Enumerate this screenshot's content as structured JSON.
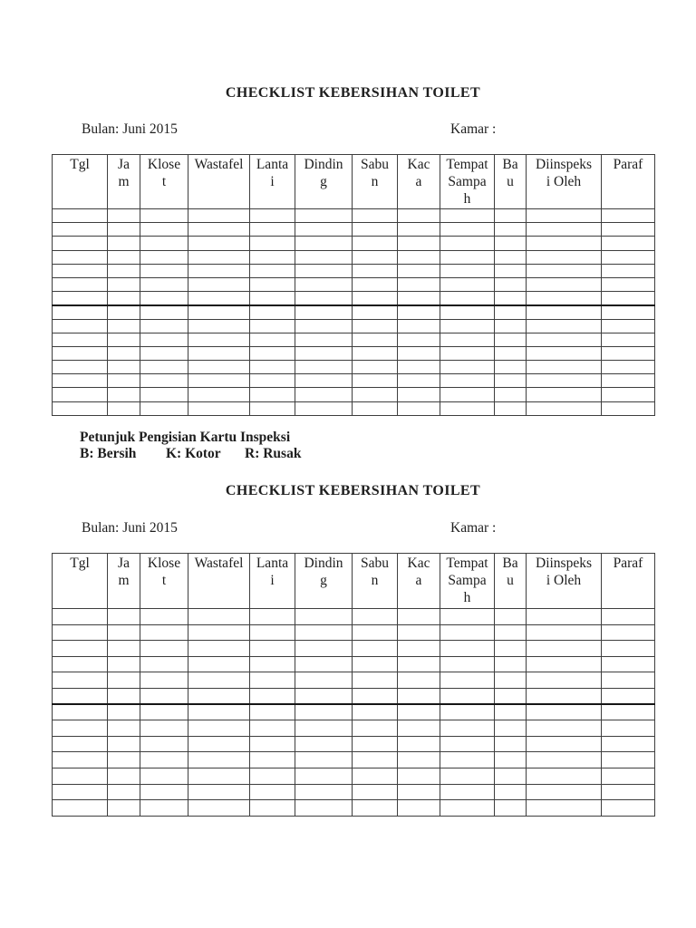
{
  "document": {
    "sections": [
      {
        "title": "CHECKLIST KEBERSIHAN TOILET",
        "month_label": "Bulan: Juni 2015",
        "room_label": "Kamar :",
        "table": {
          "columns": [
            "Tgl",
            "Ja\nm",
            "Klose\nt",
            "Wastafel",
            "Lanta\ni",
            "Dindin\ng",
            "Sabu\nn",
            "Kac\na",
            "Tempat\nSampa\nh",
            "Ba\nu",
            "Diinspeks\ni Oleh",
            "Paraf"
          ],
          "rows": 15
        },
        "instructions_title": "Petunjuk Pengisian Kartu Inspeksi",
        "legend": [
          "B: Bersih",
          "K: Kotor",
          "R: Rusak"
        ]
      },
      {
        "title": "CHECKLIST KEBERSIHAN TOILET",
        "month_label": "Bulan: Juni 2015",
        "room_label": "Kamar :",
        "table": {
          "columns": [
            "Tgl",
            "Ja\nm",
            "Klose\nt",
            "Wastafel",
            "Lanta\ni",
            "Dindin\ng",
            "Sabu\nn",
            "Kac\na",
            "Tempat\nSampa\nh",
            "Ba\nu",
            "Diinspeks\ni Oleh",
            "Paraf"
          ],
          "rows": 13
        }
      }
    ]
  }
}
